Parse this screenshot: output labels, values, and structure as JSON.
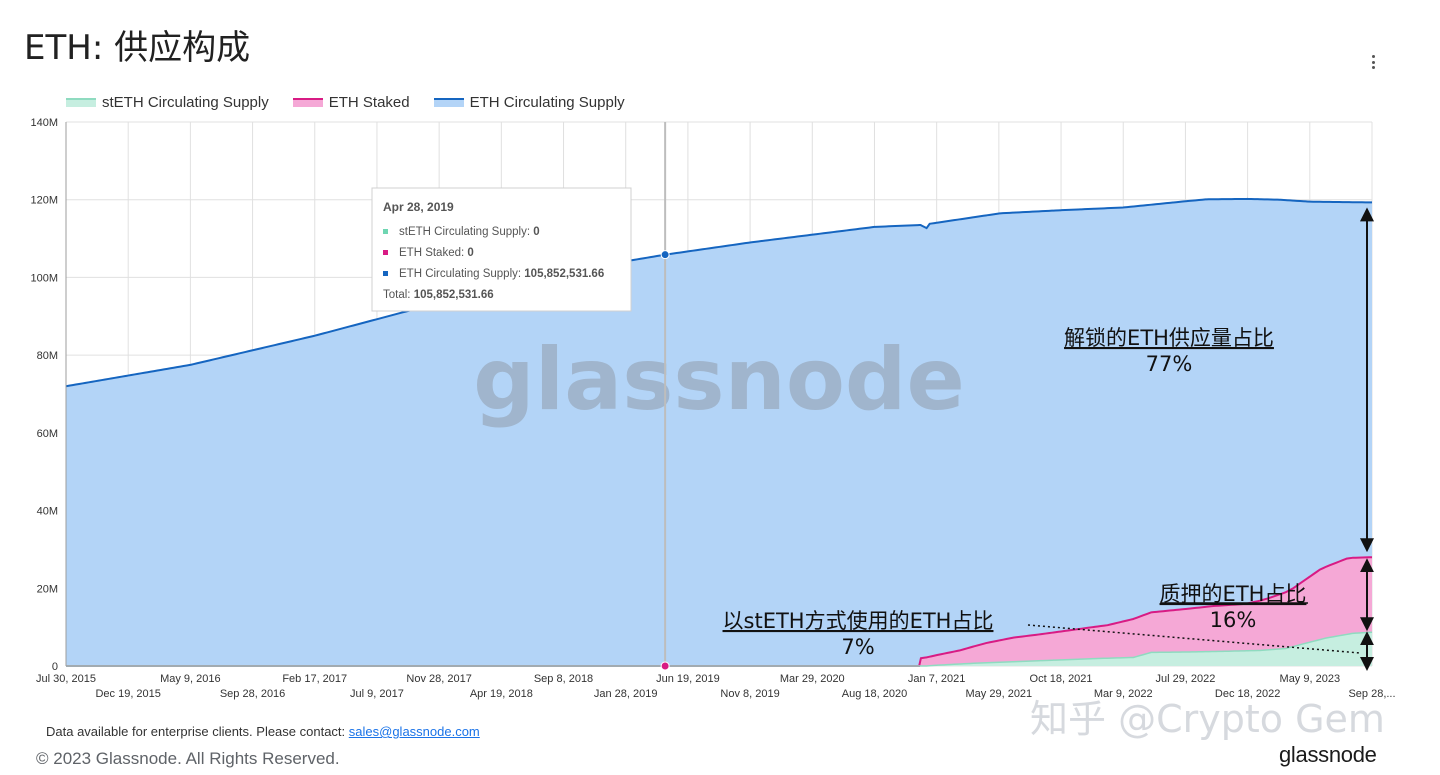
{
  "page": {
    "title": "ETH: 供应构成",
    "menu_icon": "more-vert-icon",
    "footer_note": "Data available for enterprise clients. Please contact: ",
    "footer_email": "sales@glassnode.com",
    "copyright": "© 2023 Glassnode. All Rights Reserved.",
    "brand": "glassnode",
    "chart_watermark": "glassnode",
    "zhihu_watermark": "知乎 @Crypto Gem"
  },
  "colors": {
    "steth": "#c6eee0",
    "steth_line": "#8fdbc0",
    "staked": "#f5a8d6",
    "staked_line": "#d81b84",
    "circ": "#b3d4f7",
    "circ_line": "#1565c0",
    "grid": "#e0e0e0"
  },
  "tooltip": {
    "date": "Apr 28, 2019",
    "rows": [
      {
        "label": "stETH Circulating Supply: ",
        "value": "0",
        "color": "#6fd6b2"
      },
      {
        "label": "ETH Staked: ",
        "value": "0",
        "color": "#d81b84"
      },
      {
        "label": "ETH Circulating Supply: ",
        "value": "105,852,531.66",
        "color": "#1565c0"
      }
    ],
    "total_label": "Total: ",
    "total_value": "105,852,531.66"
  },
  "annotations": {
    "unlocked_label": "解锁的ETH供应量占比",
    "unlocked_pct": "77%",
    "staked_label": "质押的ETH占比",
    "staked_pct": "16%",
    "steth_label": "以stETH方式使用的ETH占比",
    "steth_pct": "7%"
  },
  "chart_data": {
    "type": "area",
    "stacked": true,
    "ylim": [
      0,
      140000000
    ],
    "y_ticks": [
      0,
      20000000,
      40000000,
      60000000,
      80000000,
      100000000,
      120000000,
      140000000
    ],
    "y_tick_labels": [
      "0",
      "20M",
      "40M",
      "60M",
      "80M",
      "100M",
      "120M",
      "140M"
    ],
    "x_range": [
      "2015-07-30",
      "2023-09-28"
    ],
    "x_tick_labels_row1": [
      "Jul 30, 2015",
      "May 9, 2016",
      "Feb 17, 2017",
      "Nov 28, 2017",
      "Sep 8, 2018",
      "Jun 19, 2019",
      "Mar 29, 2020",
      "Jan 7, 2021",
      "Oct 18, 2021",
      "Jul 29, 2022",
      "May 9, 2023"
    ],
    "x_tick_labels_row2": [
      "Dec 19, 2015",
      "Sep 28, 2016",
      "Jul 9, 2017",
      "Apr 19, 2018",
      "Jan 28, 2019",
      "Nov 8, 2019",
      "Aug 18, 2020",
      "May 29, 2021",
      "Mar 9, 2022",
      "Dec 18, 2022",
      "Sep 28,..."
    ],
    "legend_position": "top-left",
    "grid": true,
    "series": [
      {
        "name": "stETH Circulating Supply",
        "points": [
          [
            "2015-07-30",
            0
          ],
          [
            "2020-12-15",
            0
          ],
          [
            "2021-01-07",
            200000
          ],
          [
            "2021-04-01",
            700000
          ],
          [
            "2021-07-01",
            1100000
          ],
          [
            "2021-10-01",
            1500000
          ],
          [
            "2022-01-01",
            1900000
          ],
          [
            "2022-04-01",
            2200000
          ],
          [
            "2022-05-12",
            3500000
          ],
          [
            "2022-08-01",
            3600000
          ],
          [
            "2022-11-01",
            3800000
          ],
          [
            "2023-01-15",
            4000000
          ],
          [
            "2023-03-15",
            4500000
          ],
          [
            "2023-05-01",
            5900000
          ],
          [
            "2023-06-15",
            7200000
          ],
          [
            "2023-08-15",
            8400000
          ],
          [
            "2023-09-28",
            8700000
          ]
        ]
      },
      {
        "name": "ETH Staked",
        "points": [
          [
            "2015-07-30",
            0
          ],
          [
            "2020-11-28",
            0
          ],
          [
            "2020-11-30",
            1000000
          ],
          [
            "2020-12-02",
            2000000
          ],
          [
            "2021-01-07",
            2600000
          ],
          [
            "2021-03-01",
            3500000
          ],
          [
            "2021-05-01",
            5100000
          ],
          [
            "2021-07-01",
            6200000
          ],
          [
            "2021-09-01",
            6800000
          ],
          [
            "2021-12-01",
            7800000
          ],
          [
            "2022-02-01",
            8500000
          ],
          [
            "2022-04-01",
            9900000
          ],
          [
            "2022-07-01",
            10800000
          ],
          [
            "2022-10-01",
            11700000
          ],
          [
            "2022-12-15",
            12100000
          ],
          [
            "2023-02-01",
            13200000
          ],
          [
            "2023-04-01",
            15000000
          ],
          [
            "2023-06-01",
            18000000
          ],
          [
            "2023-08-01",
            19500000
          ],
          [
            "2023-09-28",
            19300000
          ]
        ]
      },
      {
        "name": "ETH Circulating Supply",
        "points": [
          [
            "2015-07-30",
            72000000
          ],
          [
            "2016-05-09",
            77500000
          ],
          [
            "2017-02-17",
            85000000
          ],
          [
            "2017-11-28",
            93500000
          ],
          [
            "2018-09-08",
            101500000
          ],
          [
            "2019-04-28",
            105852531.66
          ],
          [
            "2019-11-08",
            109000000
          ],
          [
            "2020-08-18",
            113000000
          ],
          [
            "2020-12-01",
            113500000
          ],
          [
            "2020-12-15",
            112700000
          ],
          [
            "2020-12-22",
            113800000
          ],
          [
            "2021-06-01",
            116500000
          ],
          [
            "2021-10-18",
            117300000
          ],
          [
            "2022-03-09",
            118000000
          ],
          [
            "2022-07-29",
            119600000
          ],
          [
            "2022-09-15",
            120100000
          ],
          [
            "2022-12-18",
            120200000
          ],
          [
            "2023-03-01",
            120000000
          ],
          [
            "2023-05-09",
            119500000
          ],
          [
            "2023-09-28",
            119300000
          ]
        ]
      }
    ],
    "hover_date": "2019-04-28"
  }
}
